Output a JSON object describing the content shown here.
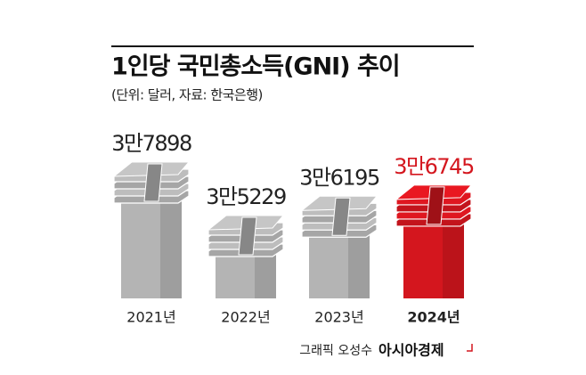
{
  "chart_data": {
    "type": "bar",
    "title": "1인당 국민총소득(GNI) 추이",
    "subtitle": "(단위: 달러, 자료: 한국은행)",
    "categories": [
      "2021년",
      "2022년",
      "2023년",
      "2024년"
    ],
    "values": [
      37898,
      35229,
      36195,
      36745
    ],
    "value_labels": [
      "3만7898",
      "3만5229",
      "3만6195",
      "3만6745"
    ],
    "colors": [
      "#b4b4b4",
      "#b4b4b4",
      "#b4b4b4",
      "#d4161e"
    ],
    "label_colors": [
      "#222222",
      "#222222",
      "#222222",
      "#d4161e"
    ],
    "credit": "그래픽 오성수",
    "source": "아시아경제"
  }
}
